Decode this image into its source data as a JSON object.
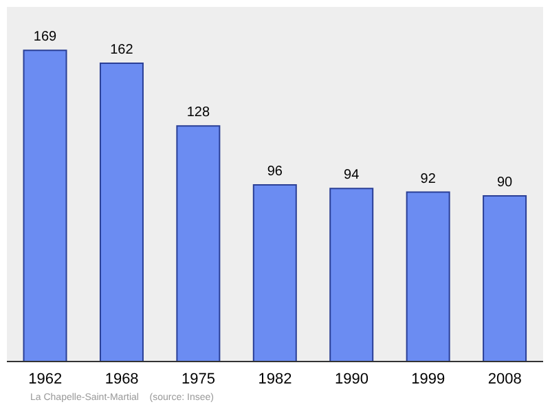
{
  "chart_data": {
    "type": "bar",
    "categories": [
      "1962",
      "1968",
      "1975",
      "1982",
      "1990",
      "1999",
      "2008"
    ],
    "values": [
      169,
      162,
      128,
      96,
      94,
      92,
      90
    ],
    "color": "#6b8cf2",
    "data_labels": true,
    "annotations": [
      "La Chapelle-Saint-Martial    (source: Insee)"
    ]
  }
}
